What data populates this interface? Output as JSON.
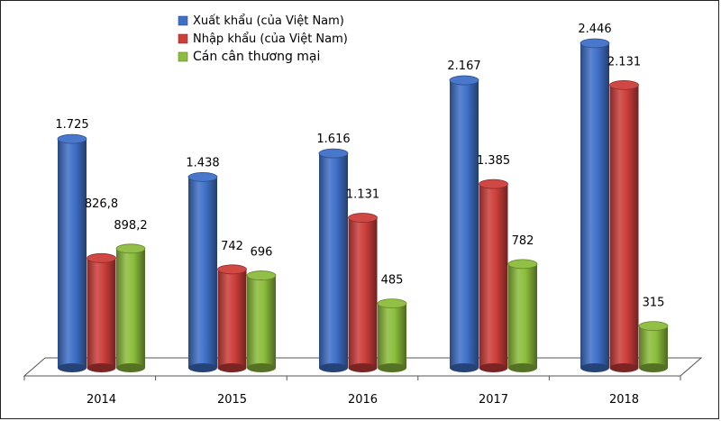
{
  "chart_data": {
    "type": "bar",
    "categories": [
      "2014",
      "2015",
      "2016",
      "2017",
      "2018"
    ],
    "series": [
      {
        "name": "Xuất khẩu (của Việt Nam)",
        "color": "#3f70c8",
        "values": [
          1725,
          1438,
          1616,
          2167,
          2446
        ],
        "labels": [
          "1.725",
          "1.438",
          "1.616",
          "2.167",
          "2.446"
        ]
      },
      {
        "name": "Nhập khẩu (của Việt Nam)",
        "color": "#cc3e3a",
        "values": [
          826.8,
          742,
          1131,
          1385,
          2131
        ],
        "labels": [
          "826,8",
          "742",
          "1.131",
          "1.385",
          "2.131"
        ]
      },
      {
        "name": "Cán cân thương mại",
        "color": "#8cbd3c",
        "values": [
          898.2,
          696,
          485,
          782,
          315
        ],
        "labels": [
          "898,2",
          "696",
          "485",
          "782",
          "315"
        ]
      }
    ],
    "ylim": [
      0,
      2500
    ],
    "grid": false,
    "legend_position": "top-center"
  }
}
